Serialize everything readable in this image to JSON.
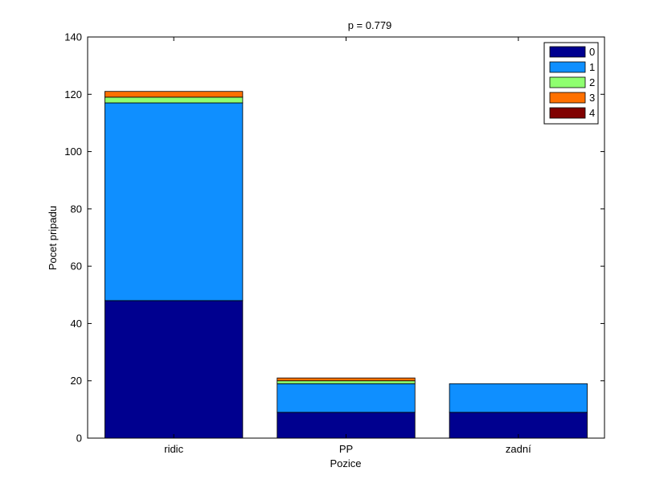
{
  "chart_data": {
    "type": "bar",
    "stacked": true,
    "title": "p = 0.779",
    "xlabel": "Pozice",
    "ylabel": "Pocet pripadu",
    "categories": [
      "ridic",
      "PP",
      "zadní"
    ],
    "ylim": [
      0,
      140
    ],
    "yticks": [
      0,
      20,
      40,
      60,
      80,
      100,
      120,
      140
    ],
    "grid": false,
    "legend_position": "top-right",
    "series": [
      {
        "name": "0",
        "color": "#00008f",
        "values": [
          48,
          9,
          9
        ]
      },
      {
        "name": "1",
        "color": "#0f8fff",
        "values": [
          69,
          10,
          10
        ]
      },
      {
        "name": "2",
        "color": "#8fff70",
        "values": [
          2,
          1,
          0
        ]
      },
      {
        "name": "3",
        "color": "#ff7000",
        "values": [
          2,
          1,
          0
        ]
      },
      {
        "name": "4",
        "color": "#800000",
        "values": [
          0,
          0,
          0
        ]
      }
    ]
  }
}
